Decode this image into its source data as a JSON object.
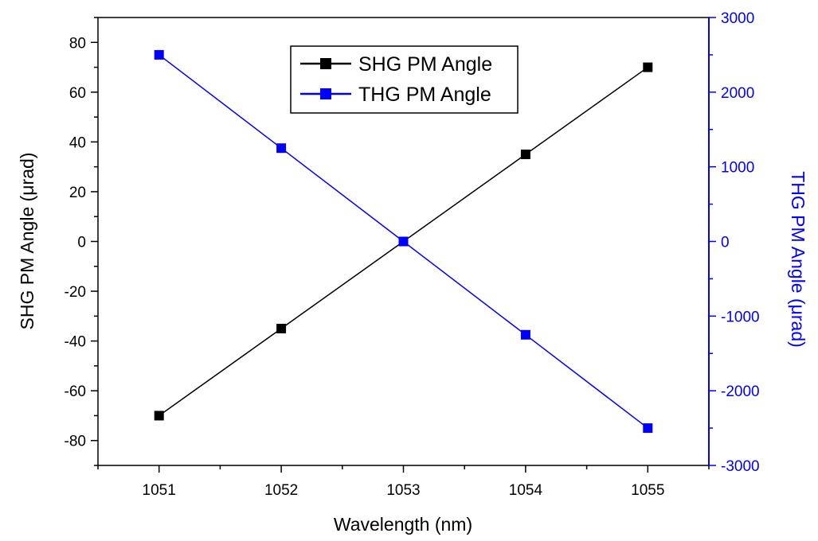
{
  "chart_data": {
    "type": "line",
    "title": "",
    "xlabel": "Wavelength (nm)",
    "ylabel_left": "SHG PM Angle (μrad)",
    "ylabel_right": "THG PM Angle (μrad)",
    "xlim": [
      1050.5,
      1055.5
    ],
    "ylim_left": [
      -90,
      90
    ],
    "ylim_right": [
      -3000,
      3000
    ],
    "x": [
      1051,
      1052,
      1053,
      1054,
      1055
    ],
    "x_ticks": [
      "1051",
      "1052",
      "1053",
      "1054",
      "1055"
    ],
    "y_left_ticks": [
      "-80",
      "-60",
      "-40",
      "-20",
      "0",
      "20",
      "40",
      "60",
      "80"
    ],
    "y_right_ticks": [
      "-3000",
      "-2000",
      "-1000",
      "0",
      "1000",
      "2000",
      "3000"
    ],
    "grid": false,
    "legend_position": "top-center",
    "series": [
      {
        "name": "SHG PM Angle",
        "axis": "left",
        "color": "#000000",
        "values": [
          -70,
          -35,
          0,
          35,
          70
        ]
      },
      {
        "name": "THG PM Angle",
        "axis": "right",
        "color": "#0000ff",
        "values": [
          2500,
          1250,
          0,
          -1250,
          -2500
        ]
      }
    ]
  }
}
